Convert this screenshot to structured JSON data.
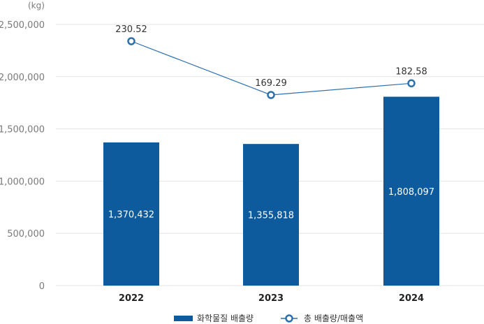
{
  "chart_data": {
    "type": "bar",
    "unit": "(kg)",
    "categories": [
      "2022",
      "2023",
      "2024"
    ],
    "ylim": [
      0,
      2500000
    ],
    "yticks": [
      "0",
      "500,000",
      "1,000,000",
      "1,500,000",
      "2,000,000",
      "2,500,000"
    ],
    "grid": true,
    "legend_position": "bottom-center",
    "series": [
      {
        "name": "화학물질 배출량",
        "kind": "bar",
        "values": [
          1370432,
          1355818,
          1808097
        ],
        "labels": [
          "1,370,432",
          "1,355,818",
          "1,808,097"
        ],
        "color": "#0d5a9c"
      },
      {
        "name": "총 배출량/매출액",
        "kind": "line",
        "values": [
          230.52,
          169.29,
          182.58
        ],
        "labels": [
          "230.52",
          "169.29",
          "182.58"
        ],
        "color": "#2e6fae"
      }
    ]
  }
}
